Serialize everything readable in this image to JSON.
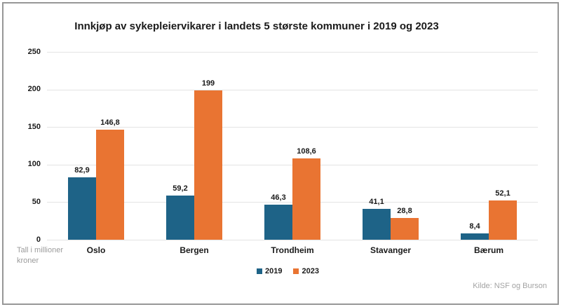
{
  "chart_data": {
    "type": "bar",
    "title": "Innkjøp av sykepleiervikarer i landets 5 største kommuner i 2019 og 2023",
    "categories": [
      "Oslo",
      "Bergen",
      "Trondheim",
      "Stavanger",
      "Bærum"
    ],
    "series": [
      {
        "name": "2019",
        "color": "#1E6387",
        "values": [
          82.9,
          59.2,
          46.3,
          41.1,
          8.4
        ],
        "labels": [
          "82,9",
          "59,2",
          "46,3",
          "41,1",
          "8,4"
        ]
      },
      {
        "name": "2023",
        "color": "#E97432",
        "values": [
          146.8,
          199,
          108.6,
          28.8,
          52.1
        ],
        "labels": [
          "146,8",
          "199",
          "108,6",
          "28,8",
          "52,1"
        ]
      }
    ],
    "xlabel": "",
    "ylabel": "",
    "unit_note": "Tall i millioner kroner",
    "source": "Kilde: NSF og Burson",
    "ylim": [
      0,
      250
    ],
    "yticks": [
      0,
      50,
      100,
      150,
      200,
      250
    ],
    "grid": true,
    "legend_position": "bottom-center",
    "colors": {
      "grid": "#e3e3e3",
      "text": "#1a1a1a",
      "muted": "#9b9b9b",
      "frame": "#979797"
    }
  }
}
